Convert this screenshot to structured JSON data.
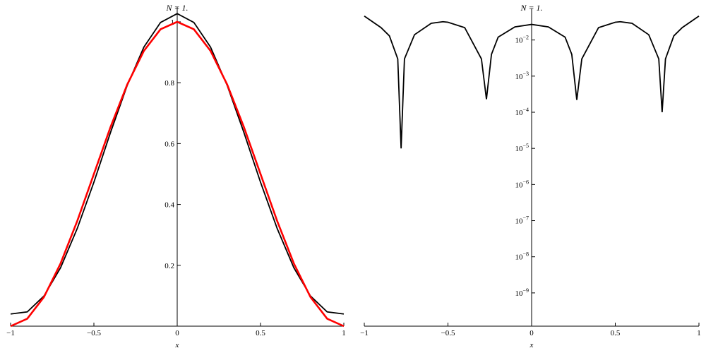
{
  "chart_data": [
    {
      "type": "line",
      "title": "N = 1.",
      "xlabel": "x",
      "x": [
        -1,
        -0.9,
        -0.8,
        -0.7,
        -0.6,
        -0.5,
        -0.4,
        -0.3,
        -0.2,
        -0.1,
        0,
        0.1,
        0.2,
        0.3,
        0.4,
        0.5,
        0.6,
        0.7,
        0.8,
        0.9,
        1
      ],
      "series": [
        {
          "color": "#000000",
          "values": [
            0.04,
            0.047,
            0.099,
            0.192,
            0.321,
            0.473,
            0.637,
            0.791,
            0.917,
            0.998,
            1.027,
            0.998,
            0.917,
            0.791,
            0.637,
            0.473,
            0.321,
            0.192,
            0.099,
            0.047,
            0.04
          ]
        },
        {
          "color": "#ff0000",
          "values": [
            0,
            0.0245,
            0.0955,
            0.2061,
            0.3455,
            0.5,
            0.6545,
            0.7939,
            0.9045,
            0.9755,
            1,
            0.9755,
            0.9045,
            0.7939,
            0.6545,
            0.5,
            0.3455,
            0.2061,
            0.0955,
            0.0245,
            0
          ]
        }
      ],
      "xlim": [
        -1,
        1
      ],
      "ylim": [
        0,
        1.03
      ],
      "xticks": [
        {
          "value": -1,
          "label": "−1"
        },
        {
          "value": -0.5,
          "label": "−0.5"
        },
        0,
        0.5,
        1
      ],
      "yticks": [
        0.2,
        0.4,
        0.6,
        0.8,
        1
      ]
    },
    {
      "type": "line",
      "title": "N = 1.",
      "xlabel": "x",
      "yscale": "log",
      "x": [
        -1,
        -0.9,
        -0.85,
        -0.8,
        -0.78,
        -0.76,
        -0.7,
        -0.6,
        -0.53,
        -0.5,
        -0.4,
        -0.3,
        -0.27,
        -0.24,
        -0.2,
        -0.1,
        0,
        0.1,
        0.2,
        0.24,
        0.27,
        0.3,
        0.4,
        0.5,
        0.53,
        0.6,
        0.7,
        0.76,
        0.78,
        0.8,
        0.85,
        0.9,
        1
      ],
      "series": [
        {
          "color": "#000000",
          "values": [
            0.046,
            0.022,
            0.013,
            0.003,
            1e-05,
            0.003,
            0.014,
            0.029,
            0.032,
            0.031,
            0.022,
            0.003,
            0.00023,
            0.004,
            0.012,
            0.023,
            0.027,
            0.023,
            0.012,
            0.004,
            0.00022,
            0.003,
            0.022,
            0.031,
            0.032,
            0.029,
            0.014,
            0.003,
            0.0001,
            0.003,
            0.013,
            0.022,
            0.046
          ]
        }
      ],
      "xlim": [
        -1,
        1
      ],
      "ylim": [
        1.2e-10,
        0.052
      ],
      "xticks": [
        {
          "value": -1,
          "label": "−1"
        },
        {
          "value": -0.5,
          "label": "−0.5"
        },
        0,
        0.5,
        1
      ],
      "yticks": [
        {
          "value": 0.01,
          "label": "10−2"
        },
        {
          "value": 0.001,
          "label": "10−3"
        },
        {
          "value": 0.0001,
          "label": "10−4"
        },
        {
          "value": 1e-05,
          "label": "10−5"
        },
        {
          "value": 1e-06,
          "label": "10−6"
        },
        {
          "value": 1e-07,
          "label": "10−7"
        },
        {
          "value": 1e-08,
          "label": "10−8"
        },
        {
          "value": 1e-09,
          "label": "10−9"
        }
      ]
    }
  ]
}
